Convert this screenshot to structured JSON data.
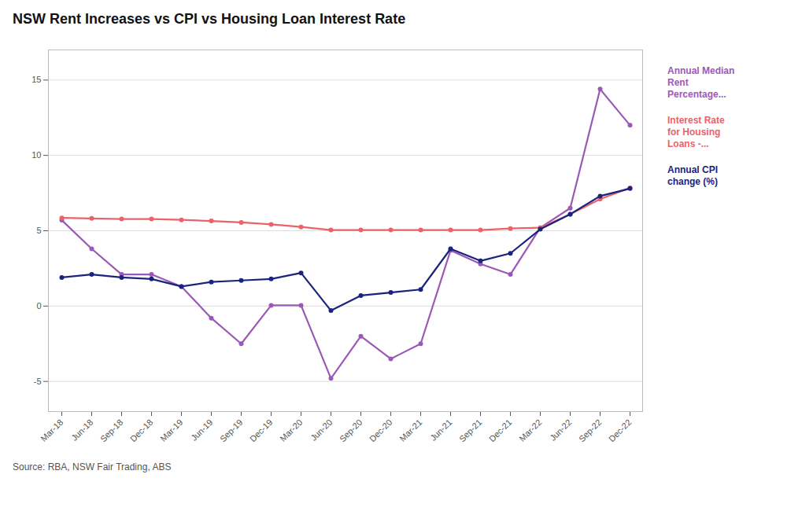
{
  "chart_data": {
    "type": "line",
    "title": "NSW Rent Increases vs CPI vs Housing Loan Interest Rate",
    "caption": "Source: RBA, NSW Fair Trading, ABS",
    "categories": [
      "Mar-18",
      "Jun-18",
      "Sep-18",
      "Dec-18",
      "Mar-19",
      "Jun-19",
      "Sep-19",
      "Dec-19",
      "Mar-20",
      "Jun-20",
      "Sep-20",
      "Dec-20",
      "Mar-21",
      "Jun-21",
      "Sep-21",
      "Dec-21",
      "Mar-22",
      "Jun-22",
      "Sep-22",
      "Dec-22"
    ],
    "series": [
      {
        "name": "Annual Median\nRent\nPercentage...",
        "color": "#9b59b6",
        "values": [
          5.7,
          3.8,
          2.1,
          2.1,
          1.3,
          -0.8,
          -2.5,
          0.05,
          0.05,
          -4.8,
          -2.0,
          -3.5,
          -2.5,
          3.7,
          2.8,
          2.1,
          5.2,
          6.5,
          14.4,
          12.0
        ]
      },
      {
        "name": "Interest Rate\nfor Housing\nLoans -...",
        "color": "#e8636a",
        "values": [
          5.85,
          5.82,
          5.78,
          5.78,
          5.72,
          5.65,
          5.55,
          5.42,
          5.25,
          5.05,
          5.05,
          5.05,
          5.05,
          5.05,
          5.05,
          5.15,
          5.2,
          6.1,
          7.1,
          7.85
        ]
      },
      {
        "name": "Annual CPI\nchange (%)",
        "color": "#1a237e",
        "values": [
          1.9,
          2.1,
          1.9,
          1.8,
          1.3,
          1.6,
          1.7,
          1.8,
          2.2,
          -0.3,
          0.7,
          0.9,
          1.1,
          3.8,
          3.0,
          3.5,
          5.1,
          6.1,
          7.3,
          7.8
        ]
      }
    ],
    "ylim": [
      -7,
      17
    ],
    "yticks": [
      -5,
      0,
      5,
      10,
      15
    ],
    "grid": true,
    "legend": "right",
    "marker": "circle"
  }
}
